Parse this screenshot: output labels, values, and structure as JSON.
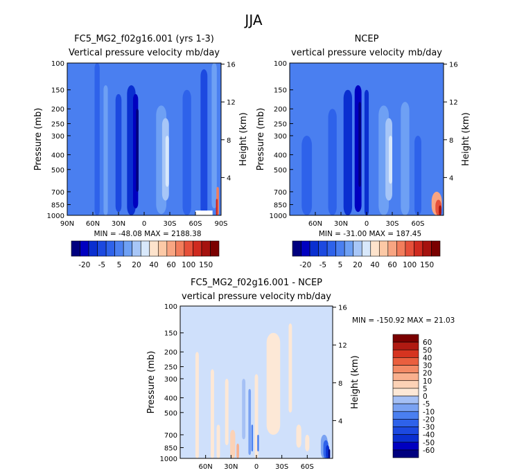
{
  "figure": {
    "title": "JJA"
  },
  "colors": {
    "contour_scale_top": [
      "#00007f",
      "#0000c0",
      "#0a2fd0",
      "#1c49e0",
      "#2e62ea",
      "#4a7ff0",
      "#6ea0f4",
      "#a7c6f7",
      "#d8e8fb",
      "#fde3cc",
      "#fcc9a6",
      "#f8a582",
      "#f27d5c",
      "#e6503a",
      "#cf2a1f",
      "#a5120e",
      "#7a0000"
    ],
    "contour_scale_diff": [
      "#00007f",
      "#0000c0",
      "#0a2fd0",
      "#1c49e0",
      "#2e62ea",
      "#4a7ff0",
      "#7aa2f2",
      "#a5c0f5",
      "#cfe0fb",
      "#fde8d6",
      "#fcd2b6",
      "#f9b08e",
      "#f38a65",
      "#ea5f3e",
      "#d63420",
      "#b01a12",
      "#7a0000"
    ]
  },
  "chart_data": [
    {
      "type": "heatmap",
      "title": "FC5_MG2_f02g16.001 (yrs 1-3)",
      "subtitle_left": "Vertical pressure velocity",
      "subtitle_right": "mb/day",
      "ylabel": "Pressure (mb)",
      "ylabel_right": "Height (km)",
      "x_ticks": [
        "90N",
        "60N",
        "30N",
        "0",
        "30S",
        "60S",
        "90S"
      ],
      "x_values": [
        90,
        60,
        30,
        0,
        -30,
        -60,
        -90
      ],
      "xlim": [
        90,
        -90
      ],
      "y_ticks": [
        "100",
        "150",
        "200",
        "250",
        "300",
        "400",
        "500",
        "700",
        "850",
        "1000"
      ],
      "y_values": [
        100,
        150,
        200,
        250,
        300,
        400,
        500,
        700,
        850,
        1000
      ],
      "y_scale": "log",
      "ylim": [
        1000,
        100
      ],
      "height_ticks": [
        "16",
        "12",
        "8",
        "4"
      ],
      "height_values": [
        16,
        12,
        8,
        4
      ],
      "stats": "MIN = -48.08   MAX = 2188.38",
      "colorbar_labels": [
        "-20",
        "-5",
        "5",
        "20",
        "40",
        "60",
        "100",
        "150"
      ],
      "contour_levels": [
        -40,
        -30,
        -25,
        -20,
        -15,
        -10,
        -5,
        0,
        5,
        10,
        20,
        30,
        40,
        50,
        60,
        100,
        150
      ]
    },
    {
      "type": "heatmap",
      "title": "NCEP",
      "subtitle_left": "vertical pressure velocity",
      "subtitle_right": "mb/day",
      "ylabel": "Pressure (mb)",
      "ylabel_right": "Height (km)",
      "x_ticks": [
        "60N",
        "30N",
        "0",
        "30S",
        "60S"
      ],
      "x_values": [
        60,
        30,
        0,
        -30,
        -60
      ],
      "xlim": [
        90,
        -90
      ],
      "y_ticks": [
        "100",
        "150",
        "200",
        "250",
        "300",
        "400",
        "500",
        "700",
        "850",
        "1000"
      ],
      "y_values": [
        100,
        150,
        200,
        250,
        300,
        400,
        500,
        700,
        850,
        1000
      ],
      "y_scale": "log",
      "ylim": [
        1000,
        100
      ],
      "height_ticks": [
        "16",
        "12",
        "8",
        "4"
      ],
      "height_values": [
        16,
        12,
        8,
        4
      ],
      "stats": "MIN = -31.00   MAX = 187.45",
      "colorbar_labels": [
        "-20",
        "-5",
        "5",
        "20",
        "40",
        "60",
        "100",
        "150"
      ],
      "contour_levels": [
        -40,
        -30,
        -25,
        -20,
        -15,
        -10,
        -5,
        0,
        5,
        10,
        20,
        30,
        40,
        50,
        60,
        100,
        150
      ]
    },
    {
      "type": "heatmap",
      "title": "FC5_MG2_f02g16.001 - NCEP",
      "subtitle_left": "vertical pressure velocity",
      "subtitle_right": "mb/day",
      "ylabel": "Pressure (mb)",
      "ylabel_right": "Height (km)",
      "x_ticks": [
        "60N",
        "30N",
        "0",
        "30S",
        "60S"
      ],
      "x_values": [
        60,
        30,
        0,
        -30,
        -60
      ],
      "xlim": [
        90,
        -90
      ],
      "y_ticks": [
        "100",
        "150",
        "200",
        "250",
        "300",
        "400",
        "500",
        "700",
        "850",
        "1000"
      ],
      "y_values": [
        100,
        150,
        200,
        250,
        300,
        400,
        500,
        700,
        850,
        1000
      ],
      "y_scale": "log",
      "ylim": [
        1000,
        100
      ],
      "height_ticks": [
        "16",
        "12",
        "8",
        "4"
      ],
      "height_values": [
        16,
        12,
        8,
        4
      ],
      "stats": "MIN = -150.92   MAX =  21.03",
      "colorbar_labels": [
        "60",
        "50",
        "40",
        "30",
        "20",
        "10",
        "5",
        "0",
        "-5",
        "-10",
        "-20",
        "-30",
        "-40",
        "-50",
        "-60"
      ],
      "contour_levels": [
        -60,
        -50,
        -40,
        -30,
        -20,
        -10,
        -5,
        0,
        5,
        10,
        20,
        30,
        40,
        50,
        60
      ]
    }
  ]
}
